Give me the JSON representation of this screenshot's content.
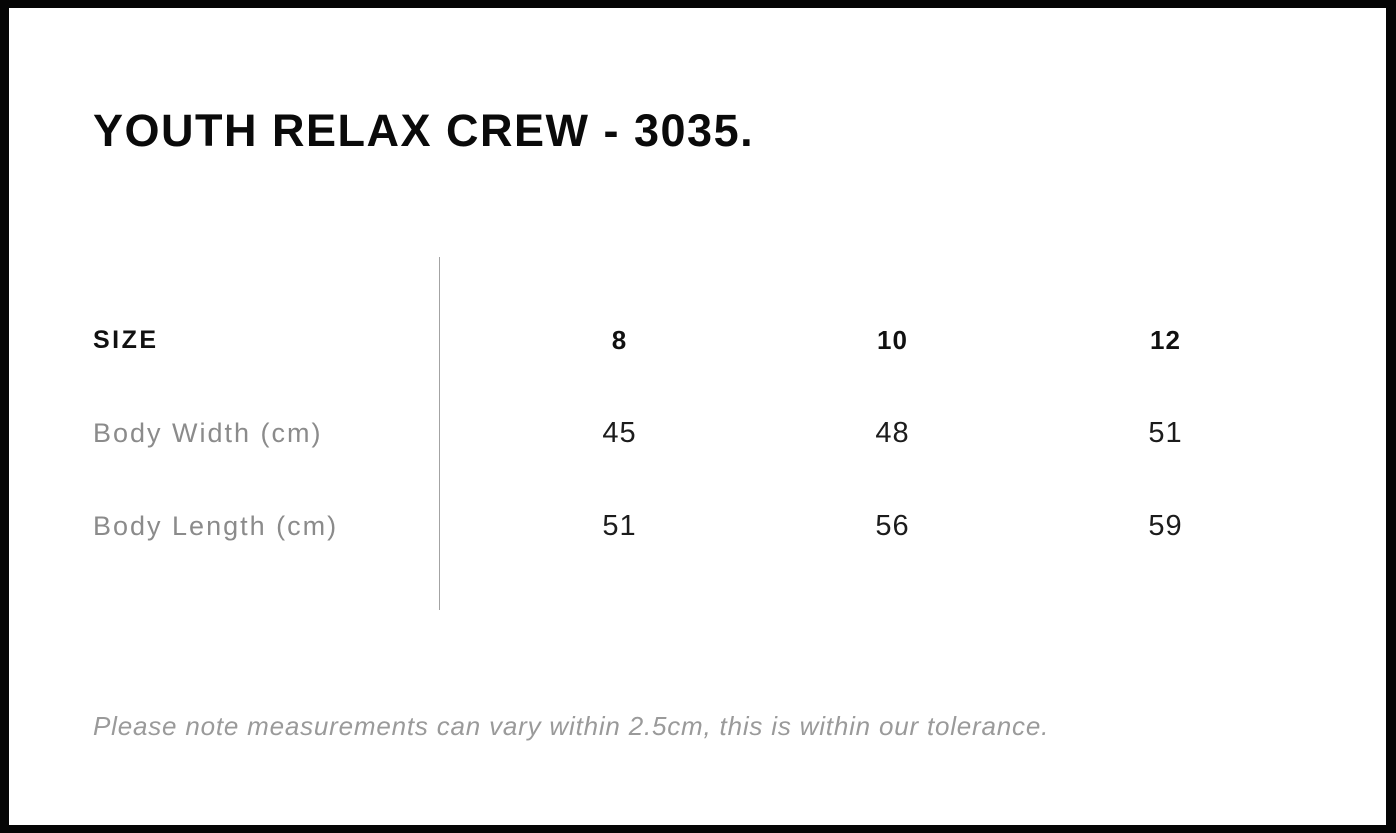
{
  "page": {
    "title": "YOUTH RELAX CREW - 3035."
  },
  "size_chart": {
    "corner_label": "SIZE",
    "columns": [
      "8",
      "10",
      "12"
    ],
    "rows": [
      {
        "label": "Body Width (cm)",
        "values": [
          "45",
          "48",
          "51"
        ]
      },
      {
        "label": "Body Length (cm)",
        "values": [
          "51",
          "56",
          "59"
        ]
      }
    ]
  },
  "note": "Please note measurements can vary within 2.5cm, this is within our tolerance.",
  "colors": {
    "frame": "#050505",
    "background": "#ffffff",
    "text_primary": "#111111",
    "text_value": "#1c1c1c",
    "text_muted_label": "#8b8b8b",
    "text_note": "#9a9a9a",
    "divider": "#a3a3a3"
  }
}
